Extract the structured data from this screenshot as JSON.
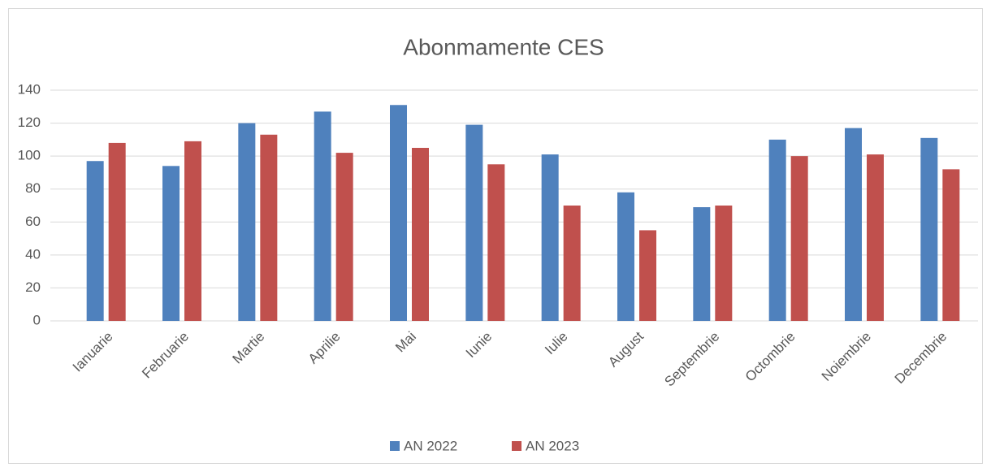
{
  "chart_data": {
    "type": "bar",
    "title": "Abonmamente CES",
    "categories": [
      "Ianuarie",
      "Februarie",
      "Martie",
      "Aprilie",
      "Mai",
      "Iunie",
      "Iulie",
      "August",
      "Septembrie",
      "Octombrie",
      "Noiembrie",
      "Decembrie"
    ],
    "series": [
      {
        "name": "AN 2022",
        "color": "#4f81bd",
        "values": [
          97,
          94,
          120,
          127,
          131,
          119,
          101,
          78,
          69,
          110,
          117,
          111
        ]
      },
      {
        "name": "AN 2023",
        "color": "#c0504d",
        "values": [
          108,
          109,
          113,
          102,
          105,
          95,
          70,
          55,
          70,
          100,
          101,
          92
        ]
      }
    ],
    "ylim": [
      0,
      140
    ],
    "yticks": [
      0,
      20,
      40,
      60,
      80,
      100,
      120,
      140
    ],
    "grid": true,
    "legend": "bottom"
  }
}
